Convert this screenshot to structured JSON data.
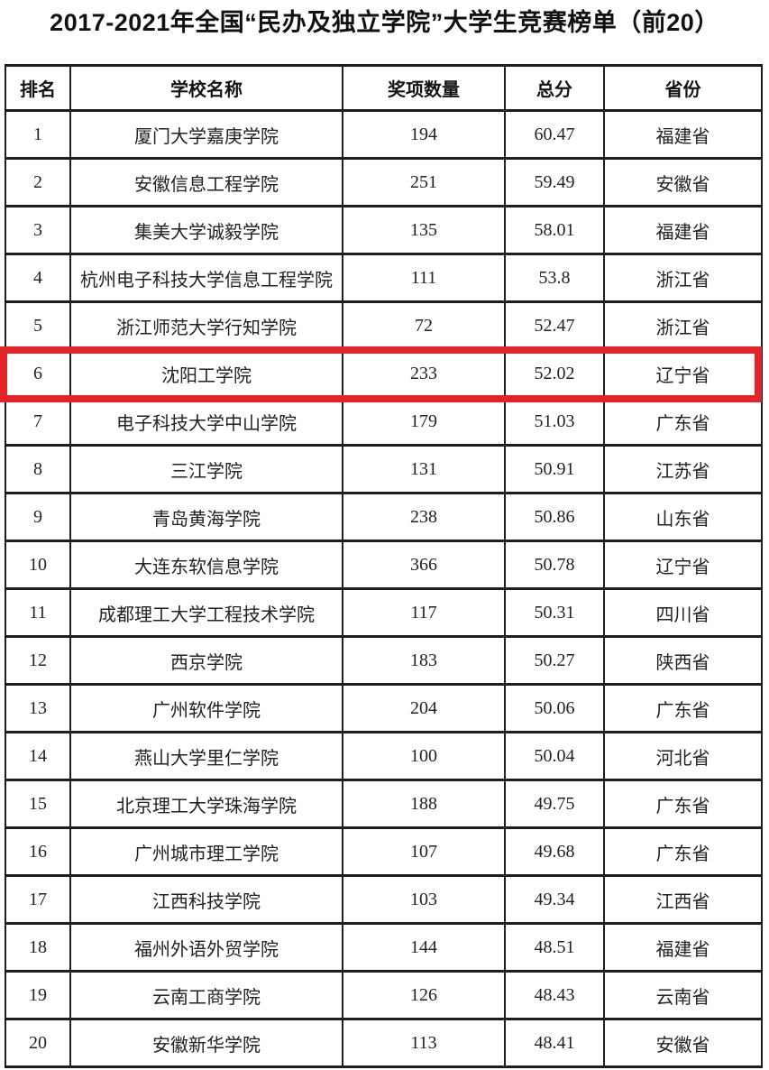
{
  "page": {
    "title": "2017-2021年全国“民办及独立学院”大学生竞赛榜单（前20）"
  },
  "table": {
    "headers": [
      "排名",
      "学校名称",
      "奖项数量",
      "总分",
      "省份"
    ],
    "highlight_rank": 6,
    "highlight_color": "#e42328",
    "rows": [
      {
        "rank": "1",
        "school": "厦门大学嘉庚学院",
        "awards": "194",
        "score": "60.47",
        "province": "福建省"
      },
      {
        "rank": "2",
        "school": "安徽信息工程学院",
        "awards": "251",
        "score": "59.49",
        "province": "安徽省"
      },
      {
        "rank": "3",
        "school": "集美大学诚毅学院",
        "awards": "135",
        "score": "58.01",
        "province": "福建省"
      },
      {
        "rank": "4",
        "school": "杭州电子科技大学信息工程学院",
        "awards": "111",
        "score": "53.8",
        "province": "浙江省"
      },
      {
        "rank": "5",
        "school": "浙江师范大学行知学院",
        "awards": "72",
        "score": "52.47",
        "province": "浙江省"
      },
      {
        "rank": "6",
        "school": "沈阳工学院",
        "awards": "233",
        "score": "52.02",
        "province": "辽宁省"
      },
      {
        "rank": "7",
        "school": "电子科技大学中山学院",
        "awards": "179",
        "score": "51.03",
        "province": "广东省"
      },
      {
        "rank": "8",
        "school": "三江学院",
        "awards": "131",
        "score": "50.91",
        "province": "江苏省"
      },
      {
        "rank": "9",
        "school": "青岛黄海学院",
        "awards": "238",
        "score": "50.86",
        "province": "山东省"
      },
      {
        "rank": "10",
        "school": "大连东软信息学院",
        "awards": "366",
        "score": "50.78",
        "province": "辽宁省"
      },
      {
        "rank": "11",
        "school": "成都理工大学工程技术学院",
        "awards": "117",
        "score": "50.31",
        "province": "四川省"
      },
      {
        "rank": "12",
        "school": "西京学院",
        "awards": "183",
        "score": "50.27",
        "province": "陕西省"
      },
      {
        "rank": "13",
        "school": "广州软件学院",
        "awards": "204",
        "score": "50.06",
        "province": "广东省"
      },
      {
        "rank": "14",
        "school": "燕山大学里仁学院",
        "awards": "100",
        "score": "50.04",
        "province": "河北省"
      },
      {
        "rank": "15",
        "school": "北京理工大学珠海学院",
        "awards": "188",
        "score": "49.75",
        "province": "广东省"
      },
      {
        "rank": "16",
        "school": "广州城市理工学院",
        "awards": "107",
        "score": "49.68",
        "province": "广东省"
      },
      {
        "rank": "17",
        "school": "江西科技学院",
        "awards": "103",
        "score": "49.34",
        "province": "江西省"
      },
      {
        "rank": "18",
        "school": "福州外语外贸学院",
        "awards": "144",
        "score": "48.51",
        "province": "福建省"
      },
      {
        "rank": "19",
        "school": "云南工商学院",
        "awards": "126",
        "score": "48.43",
        "province": "云南省"
      },
      {
        "rank": "20",
        "school": "安徽新华学院",
        "awards": "113",
        "score": "48.41",
        "province": "安徽省"
      }
    ]
  }
}
